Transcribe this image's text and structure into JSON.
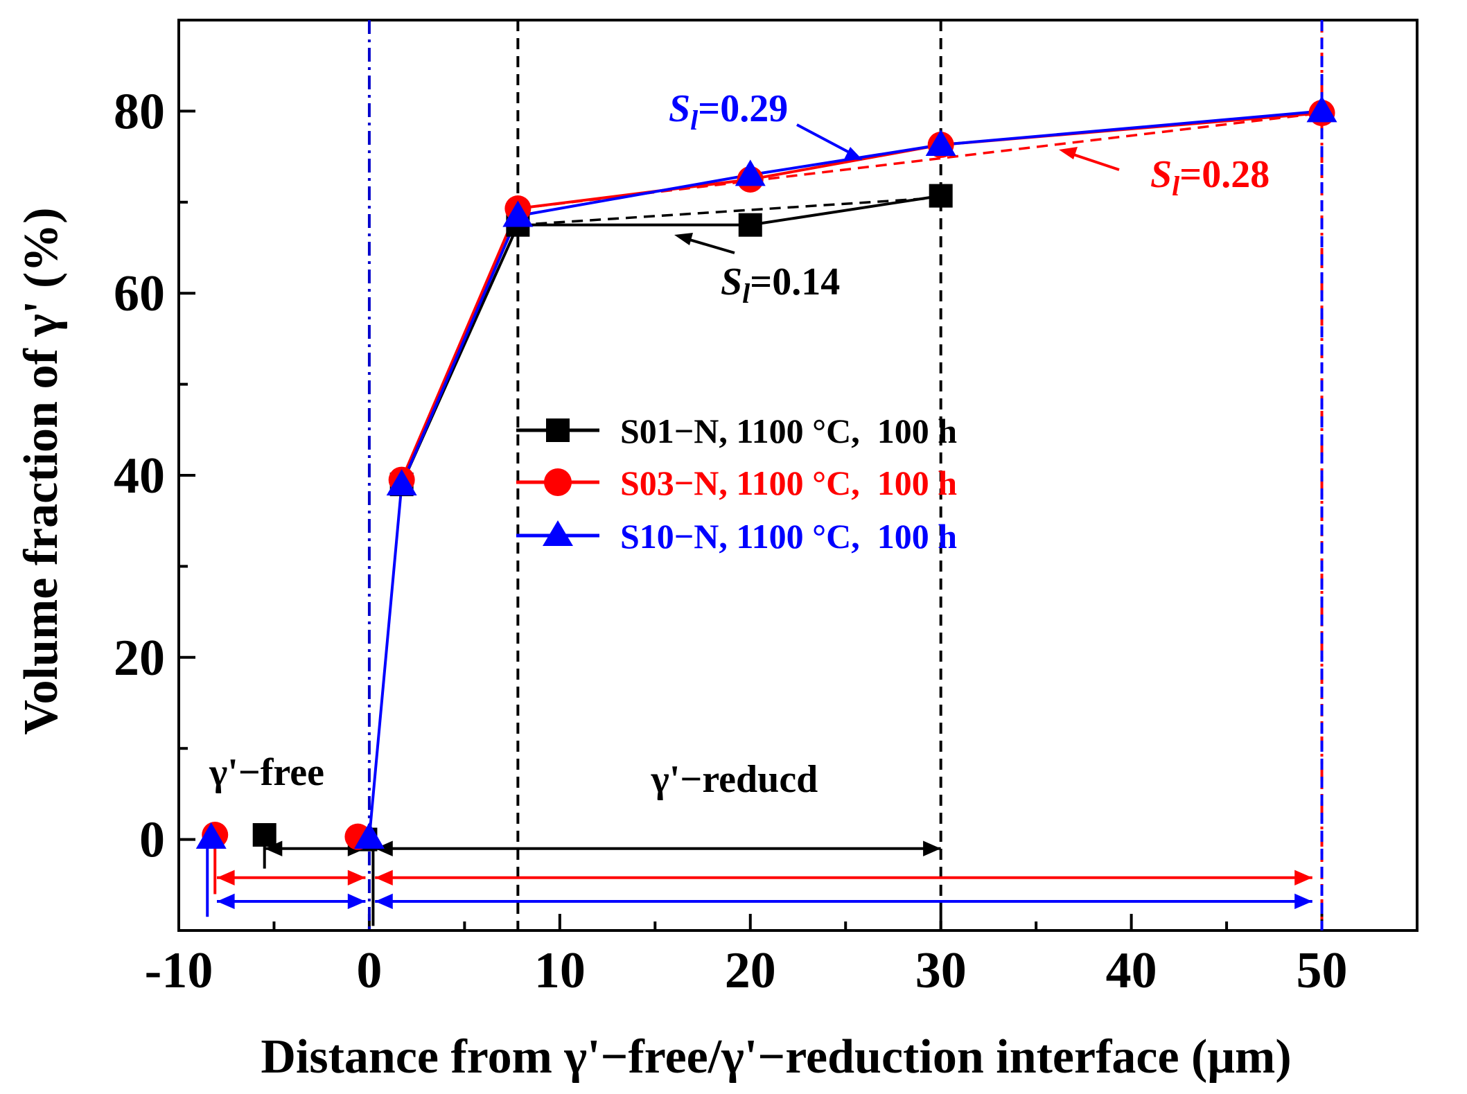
{
  "chart_data": {
    "type": "line",
    "xlabel": "Distance from γ'−free/γ'−reduction interface (μm)",
    "ylabel": "Volume fraction of  γ' (%)",
    "xlim": [
      -10,
      55
    ],
    "ylim": [
      -10,
      90
    ],
    "xticks": [
      -10,
      0,
      10,
      20,
      30,
      40,
      50
    ],
    "xtick_labels": [
      "-10",
      "0",
      "10",
      "20",
      "30",
      "40",
      "50"
    ],
    "yticks": [
      0,
      20,
      40,
      60,
      80
    ],
    "ytick_labels": [
      "0",
      "20",
      "40",
      "60",
      "80"
    ],
    "minor_x_step": 5,
    "minor_y_step": 10,
    "series": [
      {
        "name": "S01−N, 1100 °C,  100 h",
        "color": "#000000",
        "marker": "square",
        "points": [
          [
            -5.5,
            0.5
          ],
          [
            -0.2,
            0
          ],
          [
            1.7,
            39
          ],
          [
            7.8,
            67.5
          ],
          [
            20,
            67.5
          ],
          [
            30,
            70.7
          ]
        ],
        "plot_points": [
          [
            1.7,
            39
          ],
          [
            7.8,
            67.5
          ],
          [
            20,
            67.5
          ],
          [
            30,
            70.7
          ]
        ]
      },
      {
        "name": "S03−N, 1100 °C,  100 h",
        "color": "#ff0000",
        "marker": "circle",
        "points": [
          [
            -8.1,
            0.5
          ],
          [
            -0.6,
            0.3
          ],
          [
            1.7,
            39.5
          ],
          [
            7.8,
            69.3
          ],
          [
            20,
            72.5
          ],
          [
            30,
            76.3
          ],
          [
            50,
            79.8
          ]
        ],
        "plot_points": [
          [
            1.7,
            39.5
          ],
          [
            7.8,
            69.3
          ],
          [
            20,
            72.5
          ],
          [
            30,
            76.3
          ],
          [
            50,
            79.8
          ]
        ]
      },
      {
        "name": "S10−N, 1100 °C,  100 h",
        "color": "#0000ff",
        "marker": "triangle",
        "points": [
          [
            -8.3,
            0.2
          ],
          [
            0,
            0.2
          ],
          [
            1.7,
            39
          ],
          [
            7.8,
            68.5
          ],
          [
            20,
            73
          ],
          [
            30,
            76.3
          ],
          [
            50,
            80
          ]
        ],
        "plot_points": [
          [
            0,
            0.2
          ],
          [
            1.7,
            39
          ],
          [
            7.8,
            68.5
          ],
          [
            20,
            73
          ],
          [
            30,
            76.3
          ],
          [
            50,
            80
          ]
        ]
      }
    ],
    "fit_lines": [
      {
        "color": "#000000",
        "style": "dashed",
        "from": [
          7.8,
          67.5
        ],
        "to": [
          30,
          70.5
        ]
      },
      {
        "color": "#ff0000",
        "style": "dashed",
        "from": [
          7.8,
          69.3
        ],
        "to": [
          50,
          79.8
        ]
      },
      {
        "color": "#000000",
        "style": "dotted",
        "from": [
          1.7,
          39
        ],
        "to": [
          7.8,
          67.5
        ]
      }
    ],
    "vertical_lines": [
      {
        "x": 0,
        "color": "#0000cc",
        "style": "dashdot"
      },
      {
        "x": 7.8,
        "color": "#000000",
        "style": "dashed"
      },
      {
        "x": 30,
        "color": "#000000",
        "style": "dashed"
      },
      {
        "x": 50,
        "color": "#ff0000",
        "style": "dashdotdot"
      },
      {
        "x": 50,
        "color": "#0000ff",
        "style": "dashed"
      }
    ],
    "range_arrows": [
      {
        "color": "#000000",
        "y": -1,
        "from": -5.5,
        "to": -0.2
      },
      {
        "color": "#000000",
        "y": -1,
        "from": 0.3,
        "to": 30
      },
      {
        "color": "#ff0000",
        "y": -4.2,
        "from": -8,
        "to": -0.2
      },
      {
        "color": "#ff0000",
        "y": -4.2,
        "from": 0.3,
        "to": 49.5
      },
      {
        "color": "#0000ff",
        "y": -6.8,
        "from": -8,
        "to": -0.2
      },
      {
        "color": "#0000ff",
        "y": -6.8,
        "from": 0.3,
        "to": 49.5
      }
    ],
    "annotations": {
      "si_blue": {
        "prefix": "S",
        "sub": "l",
        "value": "=0.29",
        "color": "#0000ff"
      },
      "si_red": {
        "prefix": "S",
        "sub": "l",
        "value": "=0.28",
        "color": "#ff0000"
      },
      "si_black": {
        "prefix": "S",
        "sub": "l",
        "value": "=0.14",
        "color": "#000000"
      },
      "gamma_free": "γ'−free",
      "gamma_reduced": "γ'−reducd"
    }
  }
}
